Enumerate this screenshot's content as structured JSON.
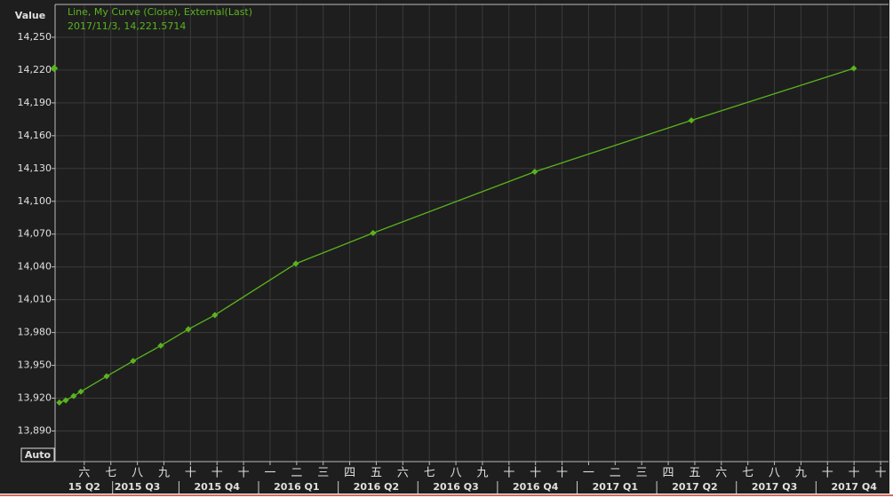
{
  "chart_data": {
    "type": "line",
    "y_axis_title": "Value",
    "legend_title": "Line, My Curve (Close), External(Last)",
    "readout": "2017/11/3, 14,221.5714",
    "button": "Auto",
    "x": [
      -0.94,
      -0.7,
      -0.4,
      -0.13,
      0.84,
      1.84,
      2.88,
      3.92,
      4.92,
      7.97,
      10.88,
      16.97,
      22.87,
      28.99
    ],
    "series": [
      {
        "name": "My Curve",
        "color": "#5ab41e",
        "values": [
          13916,
          13918,
          13922,
          13926,
          13940,
          13954,
          13968,
          13983,
          13996,
          14043,
          14071,
          14127,
          14174,
          14221.5714
        ]
      }
    ],
    "xlim": [
      -1.1,
      30.3
    ],
    "xticks": [
      {
        "value": 0,
        "label": "六"
      },
      {
        "value": 1,
        "label": "七"
      },
      {
        "value": 2,
        "label": "八"
      },
      {
        "value": 3,
        "label": "九"
      },
      {
        "value": 4,
        "label": "十"
      },
      {
        "value": 5,
        "label": "十"
      },
      {
        "value": 6,
        "label": "十"
      },
      {
        "value": 7,
        "label": "一"
      },
      {
        "value": 8,
        "label": "二"
      },
      {
        "value": 9,
        "label": "三"
      },
      {
        "value": 10,
        "label": "四"
      },
      {
        "value": 11,
        "label": "五"
      },
      {
        "value": 12,
        "label": "六"
      },
      {
        "value": 13,
        "label": "七"
      },
      {
        "value": 14,
        "label": "八"
      },
      {
        "value": 15,
        "label": "九"
      },
      {
        "value": 16,
        "label": "十"
      },
      {
        "value": 17,
        "label": "十"
      },
      {
        "value": 18,
        "label": "十"
      },
      {
        "value": 19,
        "label": "一"
      },
      {
        "value": 20,
        "label": "二"
      },
      {
        "value": 21,
        "label": "三"
      },
      {
        "value": 22,
        "label": "四"
      },
      {
        "value": 23,
        "label": "五"
      },
      {
        "value": 24,
        "label": "六"
      },
      {
        "value": 25,
        "label": "七"
      },
      {
        "value": 26,
        "label": "八"
      },
      {
        "value": 27,
        "label": "九"
      },
      {
        "value": 28,
        "label": "十"
      },
      {
        "value": 29,
        "label": "十"
      },
      {
        "value": 30,
        "label": "十"
      }
    ],
    "quarter_ticks": [
      {
        "value": 0,
        "label": "15 Q2"
      },
      {
        "value": 2,
        "label": "2015 Q3"
      },
      {
        "value": 5,
        "label": "2015 Q4"
      },
      {
        "value": 8,
        "label": "2016 Q1"
      },
      {
        "value": 11,
        "label": "2016 Q2"
      },
      {
        "value": 14,
        "label": "2016 Q3"
      },
      {
        "value": 17,
        "label": "2016 Q4"
      },
      {
        "value": 20,
        "label": "2017 Q1"
      },
      {
        "value": 23,
        "label": "2017 Q2"
      },
      {
        "value": 26,
        "label": "2017 Q3"
      },
      {
        "value": 29,
        "label": "2017 Q4"
      }
    ],
    "ylim": [
      13862,
      14280
    ],
    "yticks": [
      {
        "value": 13890,
        "label": "13,890"
      },
      {
        "value": 13920,
        "label": "13,920"
      },
      {
        "value": 13950,
        "label": "13,950"
      },
      {
        "value": 13980,
        "label": "13,980"
      },
      {
        "value": 14010,
        "label": "14,010"
      },
      {
        "value": 14040,
        "label": "14,040"
      },
      {
        "value": 14070,
        "label": "14,070"
      },
      {
        "value": 14100,
        "label": "14,100"
      },
      {
        "value": 14130,
        "label": "14,130"
      },
      {
        "value": 14160,
        "label": "14,160"
      },
      {
        "value": 14190,
        "label": "14,190"
      },
      {
        "value": 14220,
        "label": "14,220"
      },
      {
        "value": 14250,
        "label": "14,250"
      }
    ],
    "grid": true
  }
}
